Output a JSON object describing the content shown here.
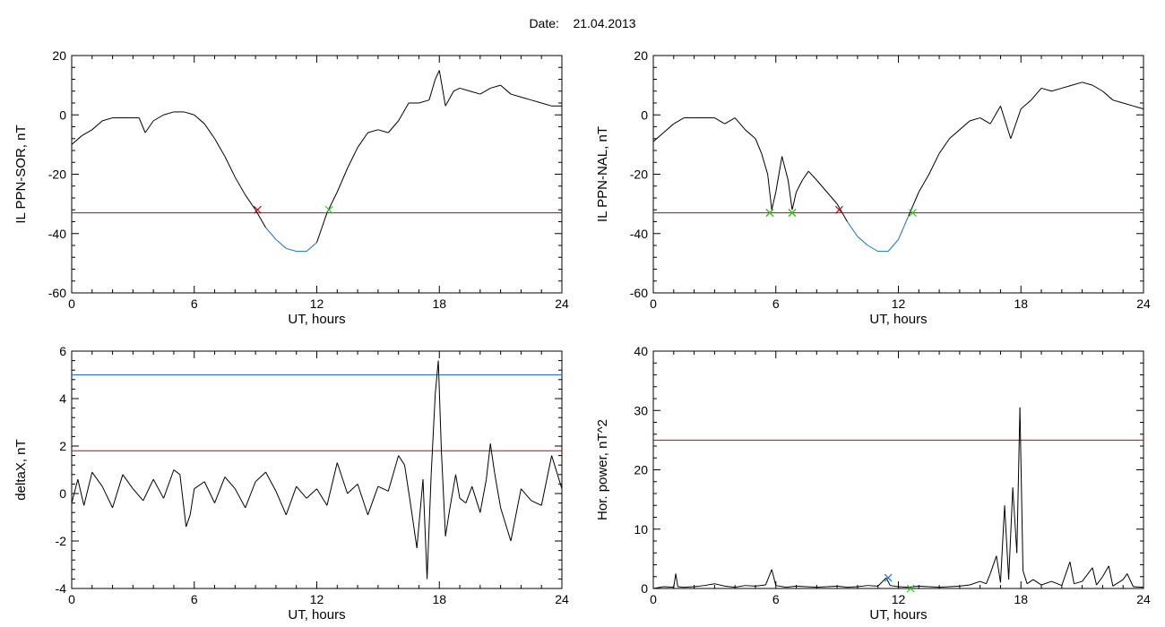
{
  "header": {
    "date_label": "Date:",
    "date_value": "21.04.2013"
  },
  "colors": {
    "trace": "#000000",
    "threshold_red": "#cc0000",
    "threshold_blue": "#1f77b4",
    "below_threshold": "#1f6fd0",
    "marker_red": "#cc0000",
    "marker_green": "#22cc22",
    "marker_blue": "#1f6fd0"
  },
  "chart_data": [
    {
      "id": "sor",
      "type": "line",
      "xlabel": "UT, hours",
      "ylabel": "IL PPN-SOR, nT",
      "xlim": [
        0,
        24
      ],
      "ylim": [
        -60,
        20
      ],
      "xticks": [
        0,
        6,
        12,
        18,
        24
      ],
      "yticks": [
        -60,
        -40,
        -20,
        0,
        20
      ],
      "threshold": -33,
      "x": [
        0,
        0.5,
        1,
        1.5,
        2,
        2.5,
        3,
        3.3,
        3.6,
        4,
        4.5,
        5,
        5.5,
        6,
        6.5,
        7,
        7.5,
        8,
        8.5,
        9,
        9.5,
        10,
        10.5,
        11,
        11.5,
        12,
        12.5,
        13,
        13.5,
        14,
        14.5,
        15,
        15.5,
        16,
        16.5,
        17,
        17.5,
        17.8,
        18,
        18.3,
        18.7,
        19,
        19.5,
        20,
        20.5,
        21,
        21.5,
        22,
        22.5,
        23,
        23.5,
        24
      ],
      "y": [
        -10,
        -7,
        -5,
        -2,
        -1,
        -1,
        -1,
        -1,
        -6,
        -2,
        0,
        1,
        1,
        0,
        -3,
        -8,
        -14,
        -21,
        -27,
        -32,
        -38,
        -42,
        -45,
        -46,
        -46,
        -43,
        -33,
        -26,
        -18,
        -11,
        -6,
        -5,
        -6,
        -2,
        4,
        4,
        5,
        12,
        15,
        3,
        8,
        9,
        8,
        7,
        9,
        10,
        7,
        6,
        5,
        4,
        3,
        3
      ],
      "markers": [
        {
          "x": 9.1,
          "y": -32,
          "color": "red"
        },
        {
          "x": 12.6,
          "y": -32,
          "color": "green"
        }
      ]
    },
    {
      "id": "nal",
      "type": "line",
      "xlabel": "UT, hours",
      "ylabel": "IL PPN-NAL, nT",
      "xlim": [
        0,
        24
      ],
      "ylim": [
        -60,
        20
      ],
      "xticks": [
        0,
        6,
        12,
        18,
        24
      ],
      "yticks": [
        -60,
        -40,
        -20,
        0,
        20
      ],
      "threshold": -33,
      "x": [
        0,
        0.5,
        1,
        1.5,
        2,
        2.5,
        3,
        3.5,
        4,
        4.5,
        5,
        5.3,
        5.6,
        5.8,
        6,
        6.3,
        6.6,
        6.8,
        7,
        7.3,
        7.6,
        8,
        8.5,
        9,
        9.5,
        10,
        10.5,
        11,
        11.5,
        12,
        12.5,
        13,
        13.5,
        14,
        14.5,
        15,
        15.5,
        16,
        16.5,
        17,
        17.5,
        18,
        18.5,
        19,
        19.5,
        20,
        20.5,
        21,
        21.5,
        22,
        22.5,
        23,
        23.5,
        24
      ],
      "y": [
        -9,
        -6,
        -3,
        -1,
        -1,
        -1,
        -1,
        -3,
        -1,
        -5,
        -8,
        -13,
        -20,
        -32,
        -26,
        -14,
        -22,
        -32,
        -26,
        -22,
        -19,
        -22,
        -26,
        -30,
        -36,
        -41,
        -44,
        -46,
        -46,
        -42,
        -34,
        -26,
        -20,
        -13,
        -8,
        -5,
        -2,
        -1,
        -3,
        3,
        -8,
        2,
        5,
        9,
        8,
        9,
        10,
        11,
        10,
        8,
        5,
        4,
        3,
        2
      ],
      "markers": [
        {
          "x": 5.7,
          "y": -33,
          "color": "red"
        },
        {
          "x": 5.7,
          "y": -33,
          "color": "green"
        },
        {
          "x": 6.8,
          "y": -33,
          "color": "red"
        },
        {
          "x": 6.8,
          "y": -33,
          "color": "green"
        },
        {
          "x": 9.1,
          "y": -32,
          "color": "red"
        },
        {
          "x": 12.7,
          "y": -33,
          "color": "green"
        }
      ]
    },
    {
      "id": "deltax",
      "type": "line",
      "xlabel": "UT, hours",
      "ylabel": "deltaX, nT",
      "xlim": [
        0,
        24
      ],
      "ylim": [
        -4,
        6
      ],
      "xticks": [
        0,
        6,
        12,
        18,
        24
      ],
      "yticks": [
        -4,
        -2,
        0,
        2,
        4,
        6
      ],
      "threshold": 1.8,
      "threshold2": 5.0,
      "x": [
        0,
        0.3,
        0.6,
        1,
        1.5,
        2,
        2.5,
        3,
        3.5,
        4,
        4.5,
        5,
        5.3,
        5.6,
        5.8,
        6,
        6.5,
        7,
        7.5,
        8,
        8.5,
        9,
        9.5,
        10,
        10.5,
        11,
        11.5,
        12,
        12.5,
        13,
        13.5,
        14,
        14.5,
        15,
        15.5,
        16,
        16.3,
        16.6,
        16.9,
        17.2,
        17.4,
        17.6,
        17.8,
        17.95,
        18.1,
        18.3,
        18.5,
        18.8,
        19,
        19.3,
        19.6,
        20,
        20.3,
        20.5,
        20.7,
        21,
        21.5,
        22,
        22.5,
        23,
        23.5,
        24
      ],
      "y": [
        -0.4,
        0.6,
        -0.5,
        0.9,
        0.3,
        -0.6,
        0.8,
        0.2,
        -0.3,
        0.6,
        -0.2,
        1.0,
        0.8,
        -1.4,
        -0.9,
        0.2,
        0.5,
        -0.4,
        0.7,
        0.2,
        -0.6,
        0.5,
        0.9,
        0.1,
        -0.9,
        0.3,
        -0.2,
        0.2,
        -0.5,
        1.3,
        0.0,
        0.4,
        -0.9,
        0.3,
        0.1,
        1.6,
        1.2,
        -0.5,
        -2.3,
        0.6,
        -3.6,
        0.8,
        4.2,
        5.6,
        1.8,
        -1.8,
        -0.7,
        0.8,
        -0.2,
        -0.4,
        0.3,
        -0.8,
        0.6,
        2.1,
        0.9,
        -0.6,
        -2.0,
        0.2,
        -0.3,
        -0.5,
        1.6,
        0.2
      ]
    },
    {
      "id": "power",
      "type": "line",
      "xlabel": "UT, hours",
      "ylabel": "Hor. power, nT^2",
      "xlim": [
        0,
        24
      ],
      "ylim": [
        0,
        40
      ],
      "xticks": [
        0,
        6,
        12,
        18,
        24
      ],
      "yticks": [
        0,
        10,
        20,
        30,
        40
      ],
      "threshold": 25,
      "x": [
        0,
        0.5,
        1,
        1.1,
        1.2,
        1.5,
        2,
        2.5,
        3,
        3.5,
        4,
        4.5,
        5,
        5.5,
        5.8,
        6,
        6.5,
        7,
        7.5,
        8,
        8.5,
        9,
        9.5,
        10,
        10.5,
        11,
        11.4,
        11.6,
        12,
        12.5,
        13,
        13.5,
        14,
        14.5,
        15,
        15.5,
        16,
        16.3,
        16.5,
        16.8,
        17,
        17.2,
        17.4,
        17.6,
        17.8,
        17.95,
        18.1,
        18.3,
        18.6,
        19,
        19.5,
        20,
        20.4,
        20.6,
        21,
        21.5,
        21.7,
        22,
        22.3,
        22.5,
        23,
        23.2,
        23.5,
        24
      ],
      "y": [
        0,
        0.3,
        0.2,
        2.5,
        0.3,
        0.2,
        0.3,
        0.5,
        0.8,
        0.4,
        0.2,
        0.5,
        0.4,
        0.6,
        3.2,
        0.5,
        0.2,
        0.4,
        0.3,
        0.2,
        0.3,
        0.4,
        0.2,
        0.3,
        0.5,
        0.4,
        1.8,
        0.5,
        0.3,
        0.2,
        0.4,
        0.3,
        0.2,
        0.3,
        0.4,
        0.6,
        1.2,
        0.8,
        2.5,
        5.5,
        1.0,
        14,
        1.5,
        17,
        6,
        30.5,
        3,
        0.8,
        1.5,
        0.6,
        1.2,
        0.5,
        4.5,
        0.8,
        1.2,
        3.5,
        0.6,
        2.0,
        3.8,
        0.4,
        1.5,
        2.5,
        0.3,
        0.2
      ],
      "markers": [
        {
          "x": 11.5,
          "y": 1.8,
          "color": "blue"
        },
        {
          "x": 12.6,
          "y": 0,
          "color": "green"
        }
      ]
    }
  ]
}
